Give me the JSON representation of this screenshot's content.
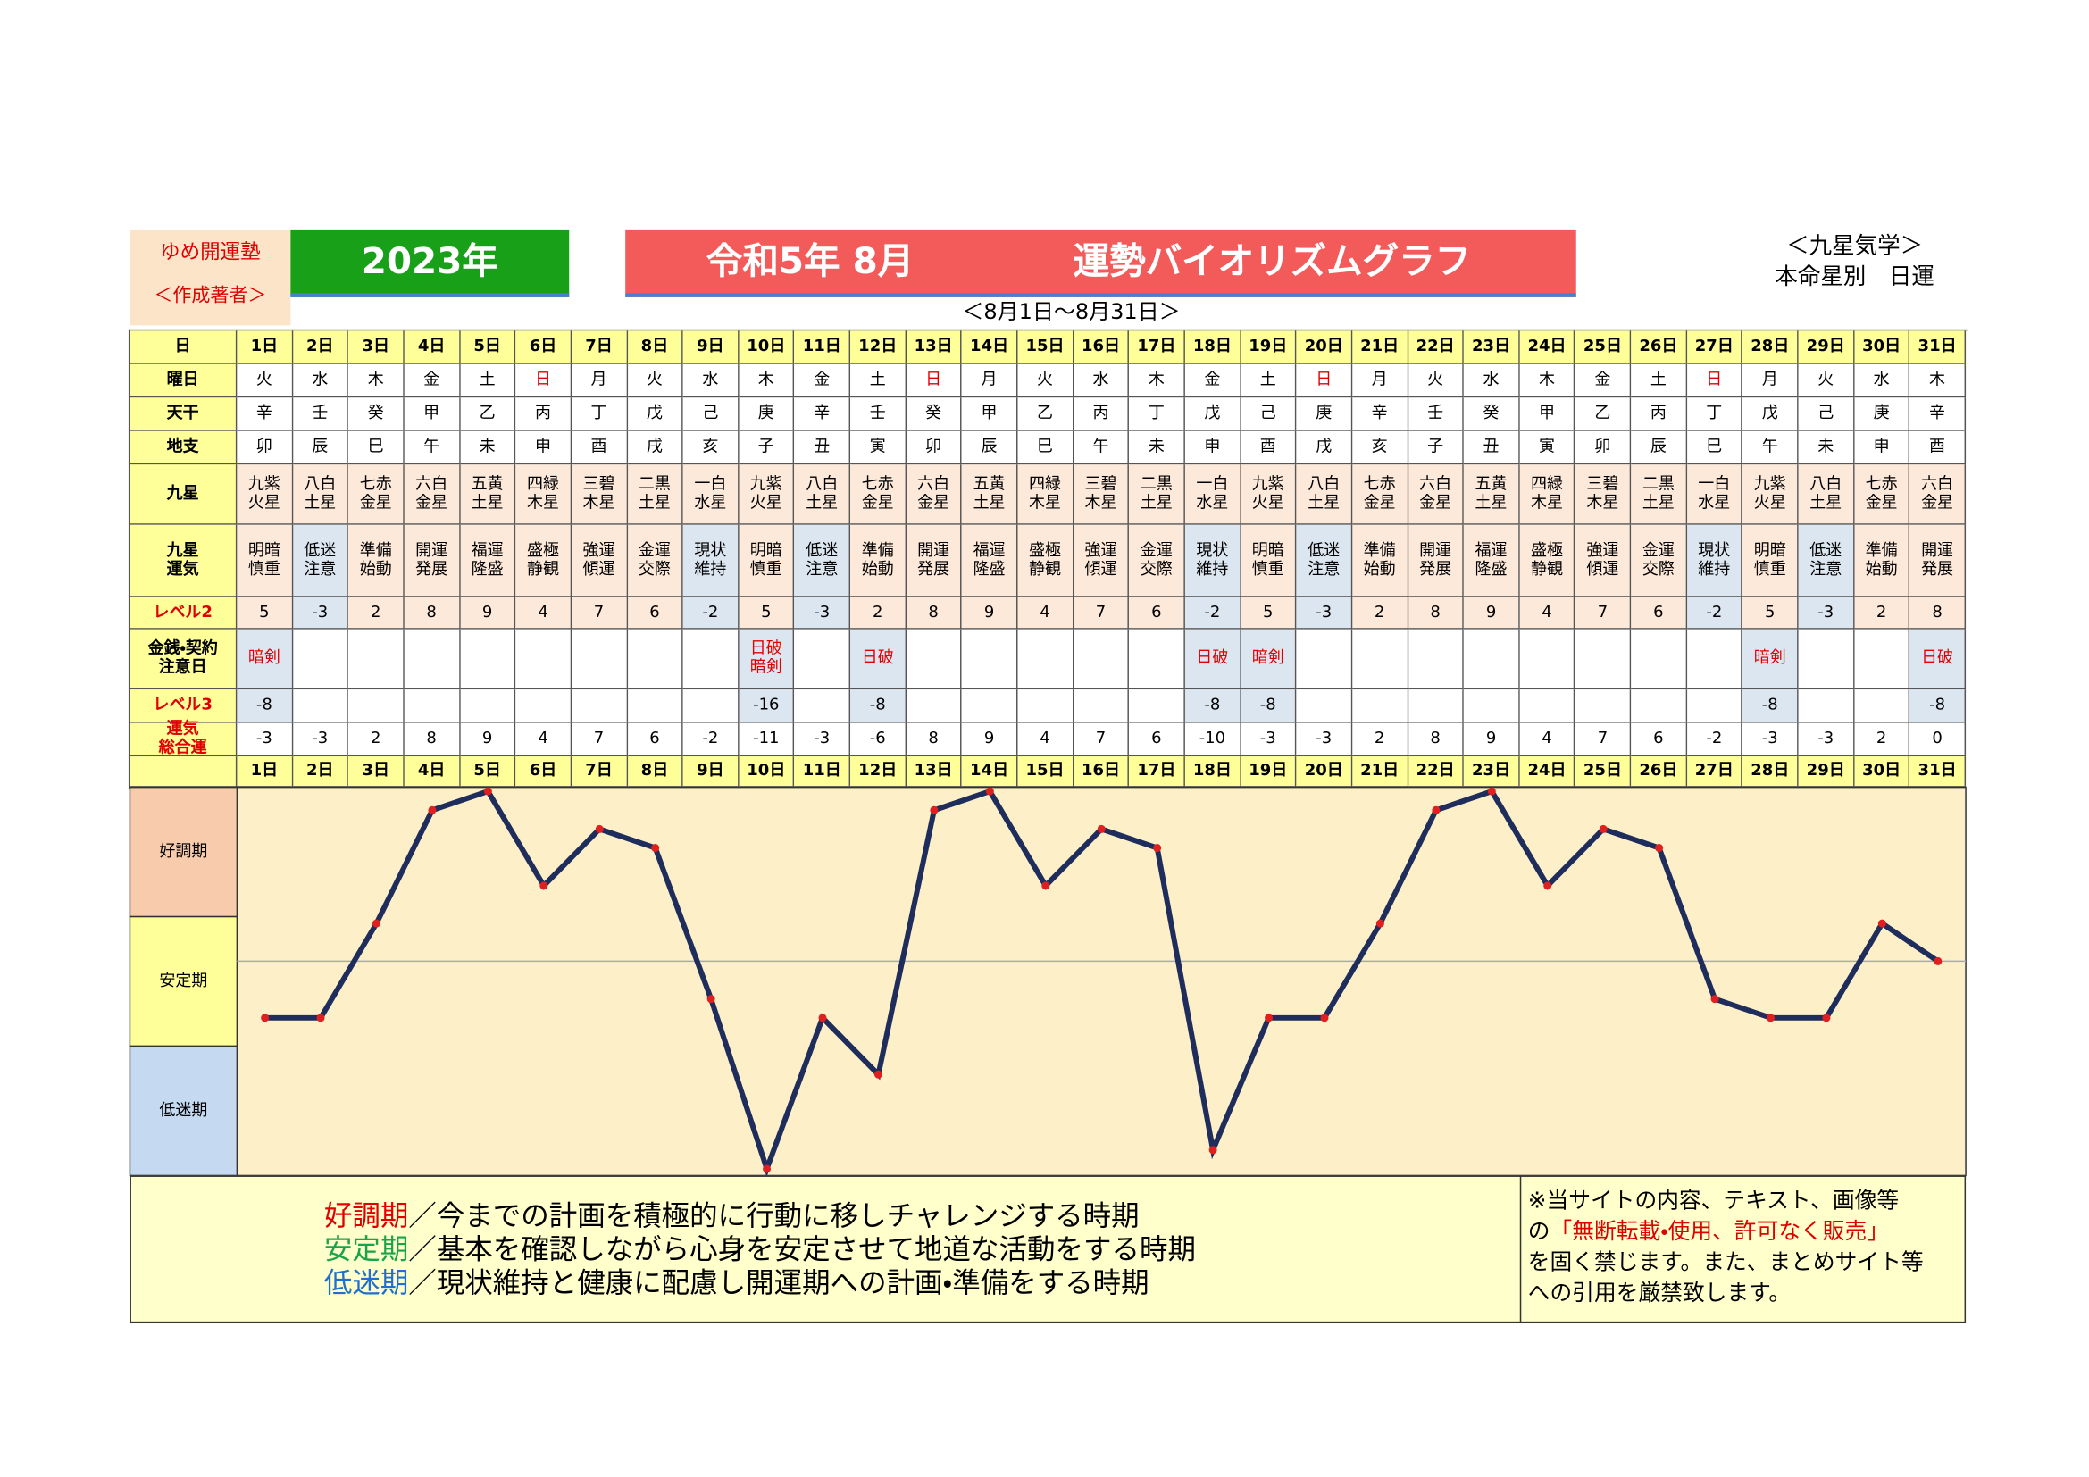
{
  "header": {
    "brand": "ゆめ開運塾",
    "author": "＜作成著者＞",
    "year": "2023年",
    "month": "令和5年 8月",
    "title": "運勢バイオリズムグラフ",
    "range": "＜8月1日～8月31日＞",
    "system": "＜九星気学＞",
    "subtitle": "本命星別　日運"
  },
  "table": {
    "positive_fill": "#fde9d9",
    "negative_fill": "#dce6f1",
    "rows": [
      {
        "label": "日",
        "cells": [
          "1日",
          "2日",
          "3日",
          "4日",
          "5日",
          "6日",
          "7日",
          "8日",
          "9日",
          "10日",
          "11日",
          "12日",
          "13日",
          "14日",
          "15日",
          "16日",
          "17日",
          "18日",
          "19日",
          "20日",
          "21日",
          "22日",
          "23日",
          "24日",
          "25日",
          "26日",
          "27日",
          "28日",
          "29日",
          "30日",
          "31日"
        ]
      },
      {
        "label": "曜日",
        "cells": [
          "火",
          "水",
          "木",
          "金",
          "土",
          "日",
          "月",
          "火",
          "水",
          "木",
          "金",
          "土",
          "日",
          "月",
          "火",
          "水",
          "木",
          "金",
          "土",
          "日",
          "月",
          "火",
          "水",
          "木",
          "金",
          "土",
          "日",
          "月",
          "火",
          "水",
          "木"
        ],
        "text_colors": [
          "#000",
          "#000",
          "#000",
          "#000",
          "#000",
          "#e00000",
          "#000",
          "#000",
          "#000",
          "#000",
          "#000",
          "#000",
          "#e00000",
          "#000",
          "#000",
          "#000",
          "#000",
          "#000",
          "#000",
          "#e00000",
          "#000",
          "#000",
          "#000",
          "#000",
          "#000",
          "#000",
          "#e00000",
          "#000",
          "#000",
          "#000",
          "#000"
        ]
      },
      {
        "label": "天干",
        "cells": [
          "辛",
          "壬",
          "癸",
          "甲",
          "乙",
          "丙",
          "丁",
          "戊",
          "己",
          "庚",
          "辛",
          "壬",
          "癸",
          "甲",
          "乙",
          "丙",
          "丁",
          "戊",
          "己",
          "庚",
          "辛",
          "壬",
          "癸",
          "甲",
          "乙",
          "丙",
          "丁",
          "戊",
          "己",
          "庚",
          "辛"
        ]
      },
      {
        "label": "地支",
        "cells": [
          "卯",
          "辰",
          "巳",
          "午",
          "未",
          "申",
          "酉",
          "戌",
          "亥",
          "子",
          "丑",
          "寅",
          "卯",
          "辰",
          "巳",
          "午",
          "未",
          "申",
          "酉",
          "戌",
          "亥",
          "子",
          "丑",
          "寅",
          "卯",
          "辰",
          "巳",
          "午",
          "未",
          "申",
          "酉"
        ]
      },
      {
        "label": "九星",
        "cells": [
          "九紫\n火星",
          "八白\n土星",
          "七赤\n金星",
          "六白\n金星",
          "五黄\n土星",
          "四緑\n木星",
          "三碧\n木星",
          "二黒\n土星",
          "一白\n水星",
          "九紫\n火星",
          "八白\n土星",
          "七赤\n金星",
          "六白\n金星",
          "五黄\n土星",
          "四緑\n木星",
          "三碧\n木星",
          "二黒\n土星",
          "一白\n水星",
          "九紫\n火星",
          "八白\n土星",
          "七赤\n金星",
          "六白\n金星",
          "五黄\n土星",
          "四緑\n木星",
          "三碧\n木星",
          "二黒\n土星",
          "一白\n水星",
          "九紫\n火星",
          "八白\n土星",
          "七赤\n金星",
          "六白\n金星"
        ]
      },
      {
        "label": "九星\n運気",
        "cells": [
          "明暗\n慎重",
          "低迷\n注意",
          "準備\n始動",
          "開運\n発展",
          "福運\n隆盛",
          "盛極\n静観",
          "強運\n傾運",
          "金運\n交際",
          "現状\n維持",
          "明暗\n慎重",
          "低迷\n注意",
          "準備\n始動",
          "開運\n発展",
          "福運\n隆盛",
          "盛極\n静観",
          "強運\n傾運",
          "金運\n交際",
          "現状\n維持",
          "明暗\n慎重",
          "低迷\n注意",
          "準備\n始動",
          "開運\n発展",
          "福運\n隆盛",
          "盛極\n静観",
          "強運\n傾運",
          "金運\n交際",
          "現状\n維持",
          "明暗\n慎重",
          "低迷\n注意",
          "準備\n始動",
          "開運\n発展"
        ]
      },
      {
        "label": "レベル2",
        "label_color": "#e00000",
        "cells": [
          5,
          -3,
          2,
          8,
          9,
          4,
          7,
          6,
          -2,
          5,
          -3,
          2,
          8,
          9,
          4,
          7,
          6,
          -2,
          5,
          -3,
          2,
          8,
          9,
          4,
          7,
          6,
          -2,
          5,
          -3,
          2,
          8
        ]
      },
      {
        "label": "金銭・契約\n注意日",
        "text_color": "#e00000",
        "cells": [
          "暗剣",
          null,
          null,
          null,
          null,
          null,
          null,
          null,
          null,
          "日破\n暗剣",
          null,
          "日破",
          null,
          null,
          null,
          null,
          null,
          "日破",
          "暗剣",
          null,
          null,
          null,
          null,
          null,
          null,
          null,
          null,
          "暗剣",
          null,
          null,
          "日破"
        ]
      },
      {
        "label": "レベル3",
        "label_color": "#e00000",
        "cells": [
          -8,
          null,
          null,
          null,
          null,
          null,
          null,
          null,
          null,
          -16,
          null,
          -8,
          null,
          null,
          null,
          null,
          null,
          -8,
          -8,
          null,
          null,
          null,
          null,
          null,
          null,
          null,
          null,
          -8,
          null,
          null,
          -8
        ]
      },
      {
        "label": "運気\n総合運",
        "label_color": "#e00000",
        "cells": [
          -3,
          -3,
          2,
          8,
          9,
          4,
          7,
          6,
          -2,
          -11,
          -3,
          -6,
          8,
          9,
          4,
          7,
          6,
          -10,
          -3,
          -3,
          2,
          8,
          9,
          4,
          7,
          6,
          -2,
          -3,
          -3,
          2,
          0
        ]
      }
    ]
  },
  "chart": {
    "bands": [
      "好調期",
      "安定期",
      "低迷期"
    ],
    "band_colors": [
      "#f8cbad",
      "#ffff99",
      "#c5d9f1"
    ],
    "ylim": [
      -11,
      9
    ],
    "line_color": "#1f2d5c",
    "marker_color": "#e02020",
    "background": "#fdf0c8"
  },
  "legend": [
    {
      "term": "好調期",
      "color": "#e00000",
      "desc": "／今までの計画を積極的に行動に移しチャレンジする時期"
    },
    {
      "term": "安定期",
      "color": "#1aa34a",
      "desc": "／基本を確認しながら心身を安定させて地道な活動をする時期"
    },
    {
      "term": "低迷期",
      "color": "#1f6fd0",
      "desc": "／現状維持と健康に配慮し開運期への計画・準備をする時期"
    }
  ],
  "note": [
    "※当サイトの内容、テキスト、画像等",
    [
      "の",
      "「無断転載・使用、許可なく販売」"
    ],
    "を固く禁じます。また、まとめサイト等",
    "への引用を厳禁致します。"
  ]
}
